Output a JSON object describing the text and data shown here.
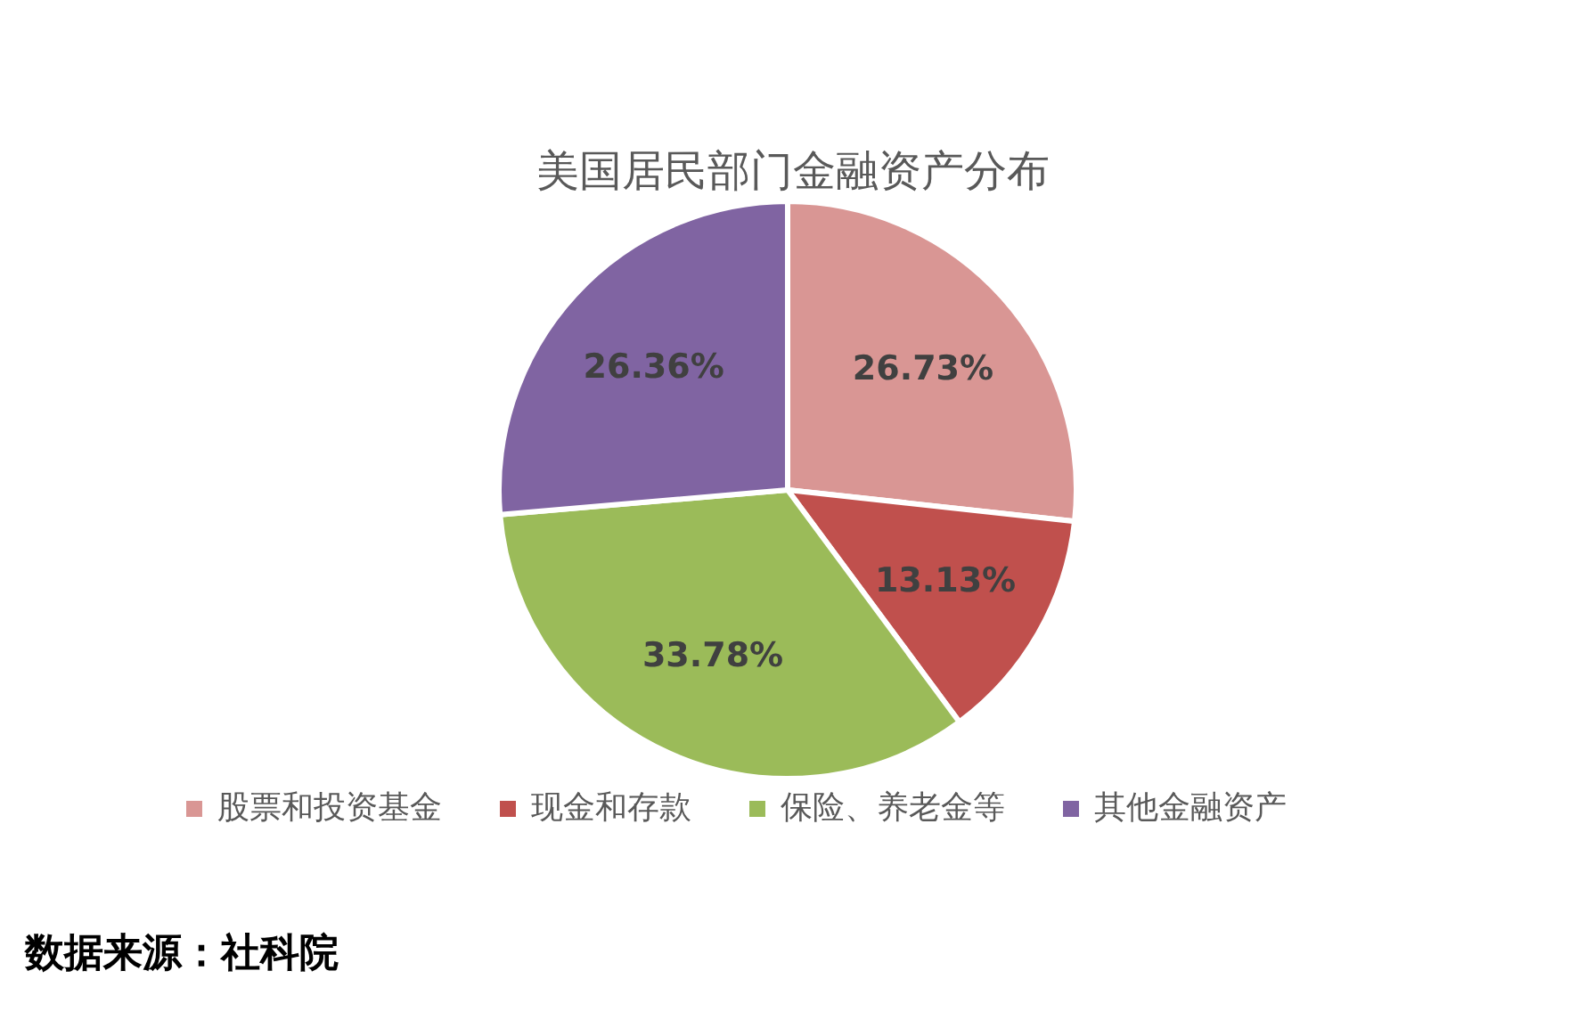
{
  "chart_data": {
    "type": "pie",
    "title": "美国居民部门金融资产分布",
    "categories": [
      "股票和投资基金",
      "现金和存款",
      "保险、养老金等",
      "其他金融资产"
    ],
    "values": [
      26.73,
      13.13,
      33.78,
      26.36
    ],
    "colors": [
      "#d99694",
      "#c0504d",
      "#9bbb59",
      "#8064a2"
    ],
    "value_labels": [
      "26.73%",
      "13.13%",
      "33.78%",
      "26.36%"
    ],
    "legend": "bottom",
    "annotations": [
      "数据来源：社科院"
    ]
  }
}
